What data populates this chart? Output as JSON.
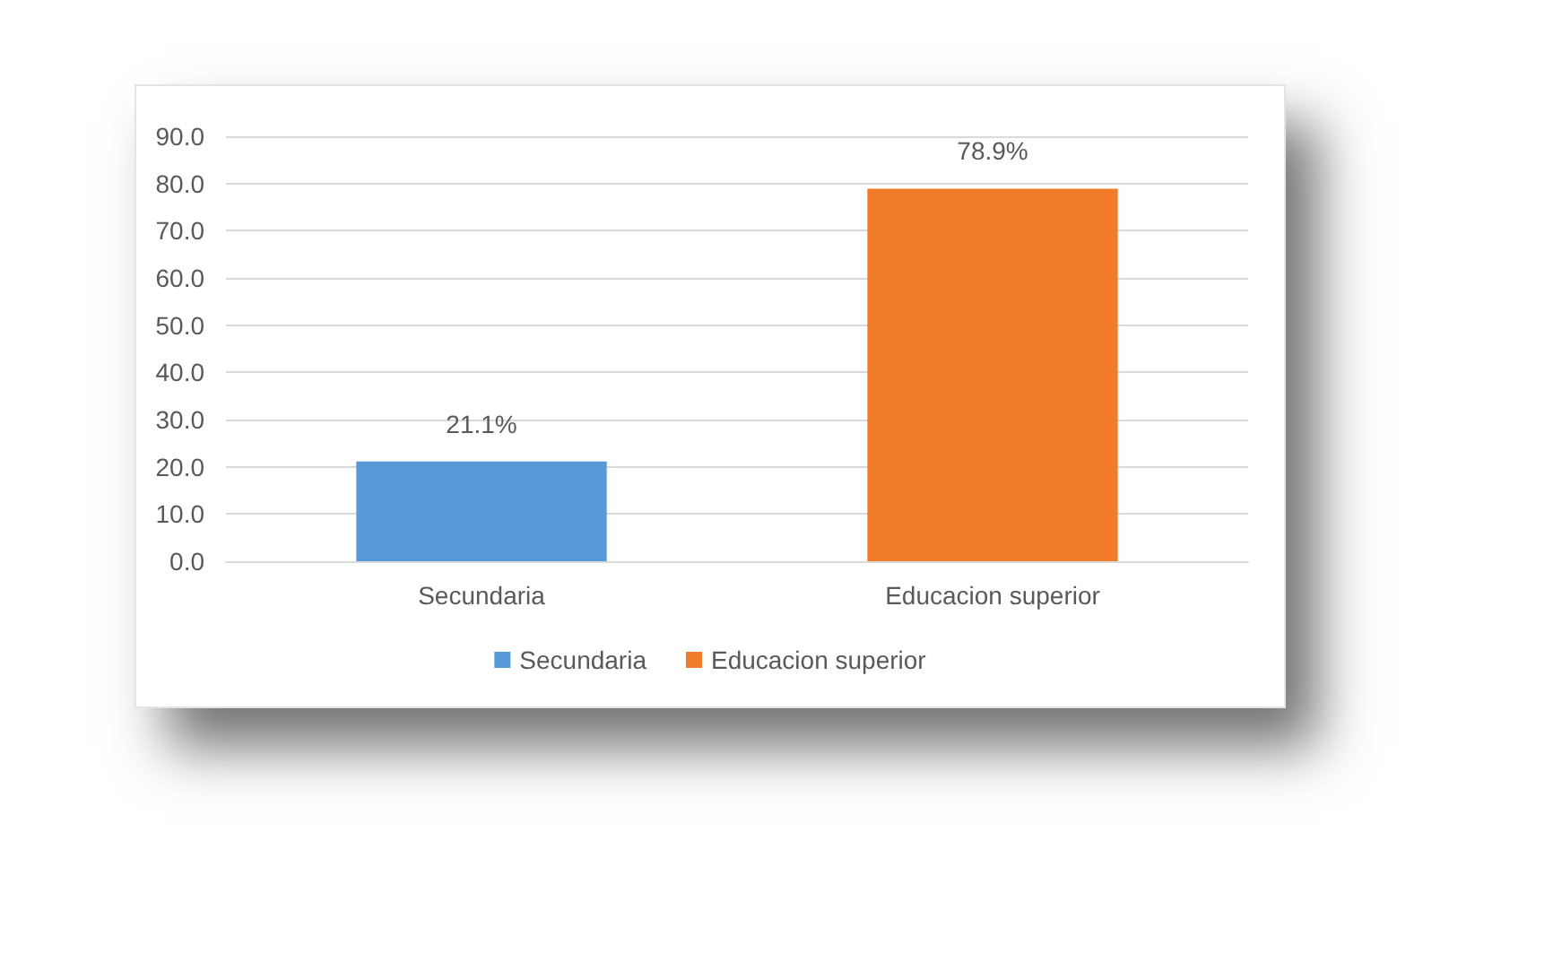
{
  "chart_data": {
    "type": "bar",
    "categories": [
      "Secundaria",
      "Educacion superior"
    ],
    "series": [
      {
        "name": "Secundaria",
        "color": "#5699d8",
        "values": [
          21.1,
          null
        ],
        "value_labels": [
          "21.1%",
          null
        ]
      },
      {
        "name": "Educacion superior",
        "color": "#f27b2a",
        "values": [
          null,
          78.9
        ],
        "value_labels": [
          null,
          "78.9%"
        ]
      }
    ],
    "ylim": [
      0,
      90
    ],
    "yticks": [
      {
        "value": 0,
        "label": "0.0"
      },
      {
        "value": 10,
        "label": "10.0"
      },
      {
        "value": 20,
        "label": "20.0"
      },
      {
        "value": 30,
        "label": "30.0"
      },
      {
        "value": 40,
        "label": "40.0"
      },
      {
        "value": 50,
        "label": "50.0"
      },
      {
        "value": 60,
        "label": "60.0"
      },
      {
        "value": 70,
        "label": "70.0"
      },
      {
        "value": 80,
        "label": "80.0"
      },
      {
        "value": 90,
        "label": "90.0"
      }
    ],
    "grid": "y",
    "legend": "bottom"
  }
}
